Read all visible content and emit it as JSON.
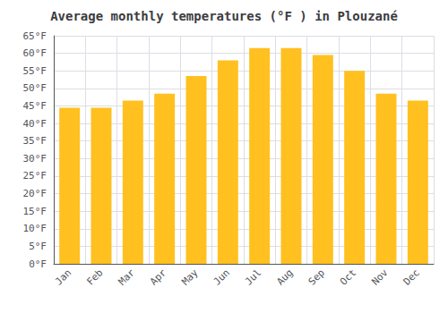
{
  "chart_data": {
    "type": "bar",
    "title": "Average monthly temperatures (°F ) in Plouzané",
    "categories": [
      "Jan",
      "Feb",
      "Mar",
      "Apr",
      "May",
      "Jun",
      "Jul",
      "Aug",
      "Sep",
      "Oct",
      "Nov",
      "Dec"
    ],
    "values": [
      44.5,
      44.5,
      46.5,
      48.5,
      53.5,
      58.0,
      61.5,
      61.5,
      59.5,
      55.0,
      48.5,
      46.5
    ],
    "color": "#FFC020",
    "ylim": [
      0,
      65
    ],
    "yticks": [
      {
        "value": 0,
        "label": "0°F"
      },
      {
        "value": 5,
        "label": "5°F"
      },
      {
        "value": 10,
        "label": "10°F"
      },
      {
        "value": 15,
        "label": "15°F"
      },
      {
        "value": 20,
        "label": "20°F"
      },
      {
        "value": 25,
        "label": "25°F"
      },
      {
        "value": 30,
        "label": "30°F"
      },
      {
        "value": 35,
        "label": "35°F"
      },
      {
        "value": 40,
        "label": "40°F"
      },
      {
        "value": 45,
        "label": "45°F"
      },
      {
        "value": 50,
        "label": "50°F"
      },
      {
        "value": 55,
        "label": "55°F"
      },
      {
        "value": 60,
        "label": "60°F"
      },
      {
        "value": 65,
        "label": "65°F"
      }
    ],
    "grid": true
  }
}
